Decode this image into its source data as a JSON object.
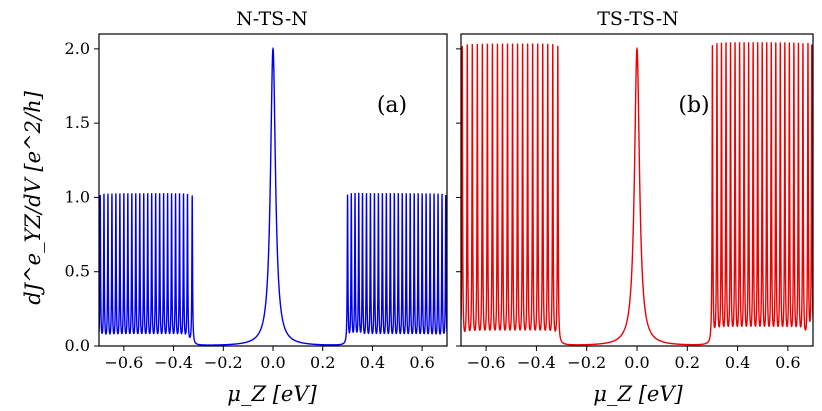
{
  "chart_data": [
    {
      "type": "line",
      "title": "N-TS-N",
      "panel_label": "(a)",
      "xlabel": "μ_Z [eV]",
      "ylabel": "dJ^e_YZ/dV [e^2/h]",
      "xlim": [
        -0.7,
        0.7
      ],
      "ylim": [
        0.0,
        2.1
      ],
      "xticks": [
        -0.6,
        -0.4,
        -0.2,
        0.0,
        0.2,
        0.4,
        0.6
      ],
      "xtick_labels": [
        "−0.6",
        "−0.4",
        "−0.2",
        "0.0",
        "0.2",
        "0.4",
        "0.6"
      ],
      "yticks": [
        0.0,
        0.5,
        1.0,
        1.5,
        2.0
      ],
      "ytick_labels": [
        "0.0",
        "0.5",
        "1.0",
        "1.5",
        "2.0"
      ],
      "color": "#0000ee",
      "series": [
        {
          "name": "N-TS-N",
          "central_peak": {
            "x": 0.0,
            "height": 2.0,
            "width": 0.012
          },
          "resonance_x": [
            -0.695,
            -0.68,
            -0.664,
            -0.648,
            -0.632,
            -0.616,
            -0.6,
            -0.584,
            -0.568,
            -0.552,
            -0.536,
            -0.52,
            -0.504,
            -0.488,
            -0.472,
            -0.456,
            -0.44,
            -0.424,
            -0.408,
            -0.392,
            -0.376,
            -0.36,
            -0.344,
            -0.325,
            0.3,
            0.315,
            0.33,
            0.345,
            0.36,
            0.376,
            0.392,
            0.408,
            0.424,
            0.44,
            0.456,
            0.472,
            0.488,
            0.504,
            0.52,
            0.536,
            0.552,
            0.568,
            0.584,
            0.6,
            0.616,
            0.632,
            0.648,
            0.664,
            0.68,
            0.695
          ],
          "resonance_height": 1.0,
          "resonance_width": 0.0015,
          "baseline_min": 0.05
        }
      ]
    },
    {
      "type": "line",
      "title": "TS-TS-N",
      "panel_label": "(b)",
      "xlabel": "μ_Z [eV]",
      "xlim": [
        -0.7,
        0.7
      ],
      "ylim": [
        0.0,
        2.1
      ],
      "xticks": [
        -0.6,
        -0.4,
        -0.2,
        0.0,
        0.2,
        0.4,
        0.6
      ],
      "xtick_labels": [
        "−0.6",
        "−0.4",
        "−0.2",
        "0.0",
        "0.2",
        "0.4",
        "0.6"
      ],
      "yticks": [
        0.0,
        0.5,
        1.0,
        1.5,
        2.0
      ],
      "color": "#ee0000",
      "series": [
        {
          "name": "TS-TS-N",
          "central_peak": {
            "x": 0.0,
            "height": 2.0,
            "width": 0.012
          },
          "resonance_x": [
            -0.695,
            -0.675,
            -0.655,
            -0.635,
            -0.615,
            -0.595,
            -0.575,
            -0.555,
            -0.535,
            -0.515,
            -0.495,
            -0.475,
            -0.455,
            -0.435,
            -0.415,
            -0.395,
            -0.375,
            -0.355,
            -0.335,
            -0.315,
            0.3,
            0.318,
            0.336,
            0.354,
            0.372,
            0.39,
            0.408,
            0.426,
            0.444,
            0.462,
            0.48,
            0.498,
            0.516,
            0.534,
            0.552,
            0.57,
            0.588,
            0.606,
            0.624,
            0.642,
            0.66,
            0.68,
            0.695
          ],
          "resonance_height": 2.0,
          "resonance_width": 0.0015,
          "baseline_min": 0.1
        }
      ]
    }
  ]
}
